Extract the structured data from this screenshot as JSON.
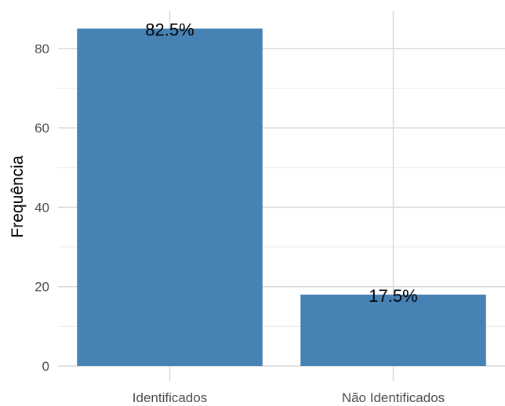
{
  "chart_data": {
    "type": "bar",
    "title": "",
    "xlabel": "",
    "ylabel": "Frequência",
    "categories": [
      "Identificados",
      "Não Identificados"
    ],
    "values": [
      85,
      18
    ],
    "bar_labels": [
      "82.5%",
      "17.5%"
    ],
    "ylim": [
      0,
      89
    ],
    "yticks": [
      0,
      20,
      40,
      60,
      80
    ],
    "grid": true,
    "legend": "none",
    "colors": {
      "bar": "#4682B4",
      "background": "#FFFFFF",
      "grid_major": "#D9D9D9",
      "grid_minor": "#EBEBEB"
    }
  }
}
